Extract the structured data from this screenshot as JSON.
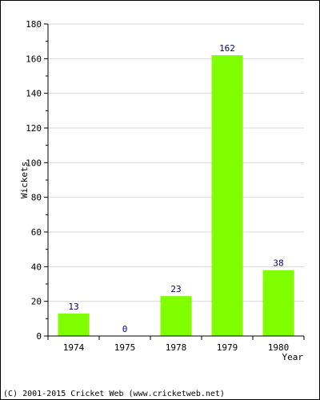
{
  "chart_data": {
    "type": "bar",
    "categories": [
      "1974",
      "1975",
      "1978",
      "1979",
      "1980"
    ],
    "values": [
      13,
      0,
      23,
      162,
      38
    ],
    "data_labels": [
      "13",
      "0",
      "23",
      "162",
      "38"
    ],
    "title": "",
    "xlabel": "Year",
    "ylabel": "Wickets",
    "ylim": [
      0,
      180
    ],
    "yticks": [
      0,
      20,
      40,
      60,
      80,
      100,
      120,
      140,
      160,
      180
    ],
    "ytick_labels": [
      "0",
      "20",
      "40",
      "60",
      "80",
      "100",
      "120",
      "140",
      "160",
      "180"
    ],
    "grid": true,
    "legend": "none",
    "bar_color": "#80ff00",
    "label_color": "#000080"
  },
  "footer": {
    "copyright": "(C) 2001-2015 Cricket Web (www.cricketweb.net)"
  }
}
